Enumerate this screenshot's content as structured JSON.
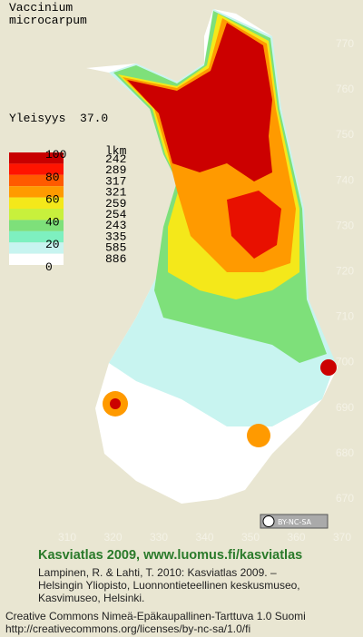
{
  "title": [
    "Vaccinium",
    "microcarpum"
  ],
  "frequency": "Yleisyys  37.0",
  "legend": {
    "scale_labels": [
      "100",
      "80",
      "60",
      "40",
      "20",
      "0"
    ],
    "count_header": "lkm",
    "counts": [
      "242",
      "289",
      "317",
      "321",
      "259",
      "254",
      "243",
      "335",
      "585",
      "886"
    ]
  },
  "map": {
    "xticks": [
      310,
      320,
      330,
      340,
      350,
      360,
      370
    ],
    "yticks": [
      770,
      760,
      750,
      740,
      730,
      720,
      710,
      700,
      690,
      680,
      670
    ]
  },
  "license_badge": "BY-NC-SA",
  "footer": {
    "heading": "Kasviatlas 2009, www.luomus.fi/kasviatlas",
    "citation": [
      "Lampinen, R. & Lahti, T. 2010: Kasviatlas 2009. –",
      "Helsingin Yliopisto, Luonnontieteellinen keskusmuseo,",
      "Kasvimuseo, Helsinki."
    ],
    "license": [
      "Creative Commons Nimeä-Epäkaupallinen-Tarttuva 1.0 Suomi",
      "http://creativecommons.org/licenses/by-nc-sa/1.0/fi"
    ]
  }
}
